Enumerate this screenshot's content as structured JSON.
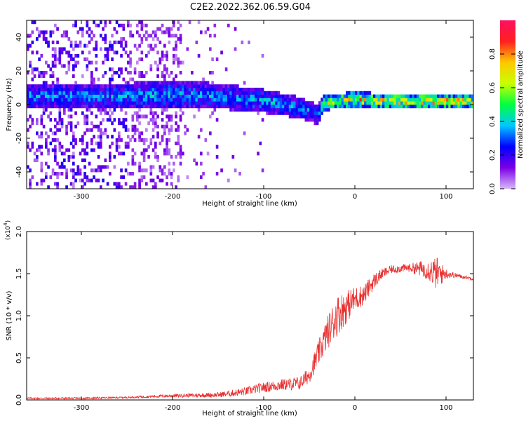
{
  "title": "C2E2.2022.362.06.59.G04",
  "chart_data": [
    {
      "type": "heatmap",
      "xlabel": "Height of straight line (km)",
      "ylabel": "Frequency (Hz)",
      "xlim": [
        -360,
        130
      ],
      "ylim": [
        -50,
        50
      ],
      "xticks": [
        -300,
        -200,
        -100,
        0,
        100
      ],
      "yticks": [
        -40,
        -20,
        0,
        20,
        40
      ],
      "colorbar": {
        "label": "Normalized spectral amplitude",
        "range": [
          0,
          1
        ],
        "ticks": [
          0.0,
          0.2,
          0.4,
          0.6,
          0.8
        ],
        "colors": [
          "#d8b8f8",
          "#7a00e6",
          "#0000ff",
          "#00c8ff",
          "#00ff40",
          "#c8ff00",
          "#ffc800",
          "#ff2020",
          "#ff1060"
        ]
      },
      "signal_band": [
        {
          "x": -255,
          "center": 4,
          "width": 12,
          "amplitude": 0.3
        },
        {
          "x": -200,
          "center": 5,
          "width": 14,
          "amplitude": 0.32
        },
        {
          "x": -150,
          "center": 4,
          "width": 12,
          "amplitude": 0.3
        },
        {
          "x": -100,
          "center": 1,
          "width": 11,
          "amplitude": 0.32
        },
        {
          "x": -60,
          "center": -3,
          "width": 10,
          "amplitude": 0.3
        },
        {
          "x": -42,
          "center": -7,
          "width": 9,
          "amplitude": 0.25
        },
        {
          "x": -35,
          "center": 0,
          "width": 7,
          "amplitude": 0.55
        },
        {
          "x": -5,
          "center": 2,
          "width": 7,
          "amplitude": 0.6
        },
        {
          "x": 50,
          "center": 1,
          "width": 7,
          "amplitude": 0.62
        },
        {
          "x": 100,
          "center": 1,
          "width": 7,
          "amplitude": 0.65
        },
        {
          "x": 130,
          "center": 1,
          "width": 7,
          "amplitude": 0.6
        }
      ],
      "grid": false
    },
    {
      "type": "line",
      "xlabel": "Height of straight line (km)",
      "ylabel": "SNR (10 * v/v)",
      "y_multiplier": "(x10",
      "y_multiplier_exp": "4",
      "xlim": [
        -360,
        130
      ],
      "ylim": [
        0,
        2.0
      ],
      "xticks": [
        -300,
        -200,
        -100,
        0,
        100
      ],
      "yticks": [
        0.0,
        0.5,
        1.0,
        1.5,
        2.0
      ],
      "series": [
        {
          "color": "#e83030",
          "x": [
            -360,
            -300,
            -250,
            -200,
            -150,
            -120,
            -100,
            -80,
            -60,
            -50,
            -40,
            -30,
            -20,
            -10,
            0,
            10,
            20,
            30,
            40,
            60,
            80,
            90,
            100,
            110,
            120,
            130
          ],
          "y": [
            0.02,
            0.02,
            0.03,
            0.05,
            0.06,
            0.1,
            0.15,
            0.18,
            0.2,
            0.3,
            0.55,
            0.8,
            1.0,
            1.1,
            1.2,
            1.25,
            1.4,
            1.5,
            1.55,
            1.57,
            1.55,
            1.5,
            1.5,
            1.48,
            1.46,
            1.44
          ],
          "noise": [
            0.01,
            0.01,
            0.01,
            0.02,
            0.03,
            0.05,
            0.06,
            0.07,
            0.08,
            0.1,
            0.15,
            0.2,
            0.25,
            0.2,
            0.15,
            0.12,
            0.1,
            0.06,
            0.05,
            0.05,
            0.12,
            0.2,
            0.06,
            0.03,
            0.02,
            0.02
          ]
        }
      ],
      "grid": false
    }
  ]
}
